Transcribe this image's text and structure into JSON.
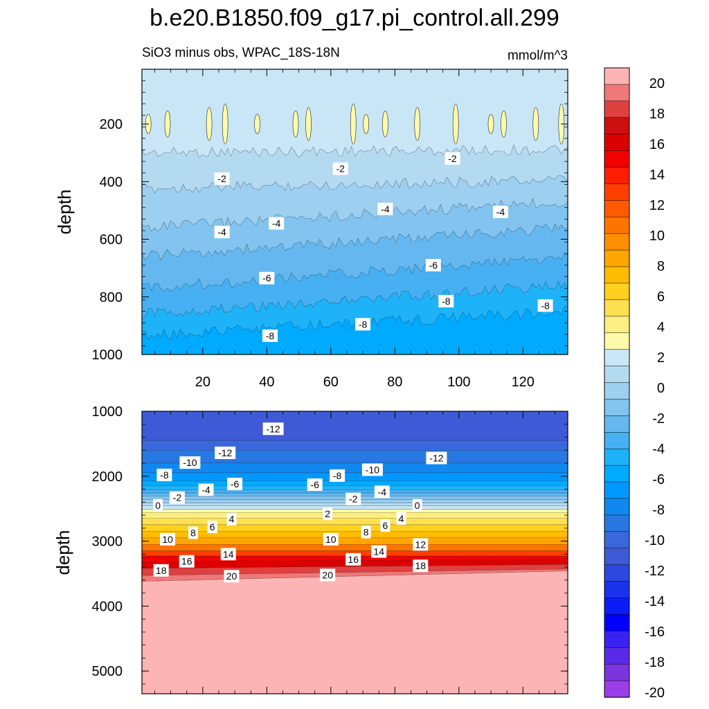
{
  "chart_data": [
    {
      "type": "heatmap",
      "panel": "upper",
      "title": "b.e20.B1850.f09_g17.pi_control.all.299",
      "subtitle_left": "SiO3 minus obs, WPAC_18S-18N",
      "subtitle_right": "mmol/m^3",
      "ylabel": "depth",
      "xlim": [
        1,
        134
      ],
      "ylim": [
        1000,
        10
      ],
      "x_ticks": [
        20,
        40,
        60,
        80,
        100,
        120
      ],
      "y_ticks": [
        200,
        400,
        600,
        800,
        1000
      ],
      "y_tick_labels": [
        "200",
        "400",
        "600",
        "800",
        "1000"
      ],
      "bands": [
        {
          "top": [
            10,
            10
          ],
          "bottom": [
            300,
            290
          ],
          "value": -1
        },
        {
          "top": [
            300,
            290
          ],
          "bottom": [
            425,
            395
          ],
          "value": -2
        },
        {
          "top": [
            425,
            395
          ],
          "bottom": [
            560,
            470
          ],
          "value": -3
        },
        {
          "top": [
            560,
            470
          ],
          "bottom": [
            660,
            560
          ],
          "value": -4
        },
        {
          "top": [
            660,
            560
          ],
          "bottom": [
            770,
            665
          ],
          "value": -5
        },
        {
          "top": [
            770,
            665
          ],
          "bottom": [
            860,
            760
          ],
          "value": -6
        },
        {
          "top": [
            860,
            760
          ],
          "bottom": [
            935,
            850
          ],
          "value": -7
        },
        {
          "top": [
            935,
            850
          ],
          "bottom": [
            1000,
            1000
          ],
          "value": -8
        }
      ],
      "positive_patches_x": [
        3,
        9,
        22,
        27,
        37,
        49,
        53,
        67,
        71,
        77,
        87,
        99,
        110,
        114,
        124,
        132
      ],
      "positive_patches_depth": 200,
      "contour_labels": [
        {
          "x": 26,
          "y": 390,
          "text": "-2"
        },
        {
          "x": 63,
          "y": 355,
          "text": "-2"
        },
        {
          "x": 98,
          "y": 320,
          "text": "-2"
        },
        {
          "x": 26,
          "y": 575,
          "text": "-4"
        },
        {
          "x": 43,
          "y": 545,
          "text": "-4"
        },
        {
          "x": 77,
          "y": 495,
          "text": "-4"
        },
        {
          "x": 113,
          "y": 505,
          "text": "-4"
        },
        {
          "x": 40,
          "y": 735,
          "text": "-6"
        },
        {
          "x": 92,
          "y": 690,
          "text": "-6"
        },
        {
          "x": 41,
          "y": 935,
          "text": "-8"
        },
        {
          "x": 70,
          "y": 895,
          "text": "-8"
        },
        {
          "x": 96,
          "y": 815,
          "text": "-8"
        },
        {
          "x": 127,
          "y": 830,
          "text": "-8"
        }
      ]
    },
    {
      "type": "heatmap",
      "panel": "lower",
      "ylabel": "depth",
      "xlim": [
        1,
        134
      ],
      "ylim": [
        5350,
        1000
      ],
      "y_ticks": [
        1000,
        2000,
        3000,
        4000,
        5000
      ],
      "y_tick_labels": [
        "1000",
        "2000",
        "3000",
        "4000",
        "5000"
      ],
      "bands": [
        {
          "top": [
            1000,
            1000
          ],
          "bottom": [
            1450,
            1450
          ],
          "value": -13
        },
        {
          "top": [
            1450,
            1450
          ],
          "bottom": [
            1600,
            1600
          ],
          "value": -12
        },
        {
          "top": [
            1600,
            1600
          ],
          "bottom": [
            1800,
            1800
          ],
          "value": -11
        },
        {
          "top": [
            1800,
            1800
          ],
          "bottom": [
            1950,
            1950
          ],
          "value": -10
        },
        {
          "top": [
            1950,
            1950
          ],
          "bottom": [
            2070,
            2070
          ],
          "value": -9
        },
        {
          "top": [
            2070,
            2070
          ],
          "bottom": [
            2150,
            2150
          ],
          "value": -8
        },
        {
          "top": [
            2150,
            2150
          ],
          "bottom": [
            2210,
            2210
          ],
          "value": -7
        },
        {
          "top": [
            2210,
            2210
          ],
          "bottom": [
            2260,
            2260
          ],
          "value": -6
        },
        {
          "top": [
            2260,
            2260
          ],
          "bottom": [
            2310,
            2310
          ],
          "value": -5
        },
        {
          "top": [
            2310,
            2310
          ],
          "bottom": [
            2360,
            2360
          ],
          "value": -4
        },
        {
          "top": [
            2360,
            2360
          ],
          "bottom": [
            2410,
            2410
          ],
          "value": -3
        },
        {
          "top": [
            2410,
            2410
          ],
          "bottom": [
            2460,
            2460
          ],
          "value": -2
        },
        {
          "top": [
            2460,
            2460
          ],
          "bottom": [
            2510,
            2510
          ],
          "value": -1
        },
        {
          "top": [
            2510,
            2510
          ],
          "bottom": [
            2560,
            2560
          ],
          "value": 0
        },
        {
          "top": [
            2560,
            2560
          ],
          "bottom": [
            2650,
            2650
          ],
          "value": 1
        },
        {
          "top": [
            2650,
            2650
          ],
          "bottom": [
            2750,
            2750
          ],
          "value": 3
        },
        {
          "top": [
            2750,
            2750
          ],
          "bottom": [
            2850,
            2850
          ],
          "value": 5
        },
        {
          "top": [
            2850,
            2850
          ],
          "bottom": [
            2950,
            2950
          ],
          "value": 7
        },
        {
          "top": [
            2950,
            2950
          ],
          "bottom": [
            3050,
            3050
          ],
          "value": 9
        },
        {
          "top": [
            3050,
            3050
          ],
          "bottom": [
            3150,
            3150
          ],
          "value": 11
        },
        {
          "top": [
            3150,
            3150
          ],
          "bottom": [
            3230,
            3230
          ],
          "value": 13
        },
        {
          "top": [
            3230,
            3230
          ],
          "bottom": [
            3320,
            3280
          ],
          "value": 15
        },
        {
          "top": [
            3320,
            3280
          ],
          "bottom": [
            3420,
            3360
          ],
          "value": 17
        },
        {
          "top": [
            3420,
            3360
          ],
          "bottom": [
            3530,
            3430
          ],
          "value": 19
        },
        {
          "top": [
            3530,
            3430
          ],
          "bottom": [
            3620,
            3460
          ],
          "value": 20.5
        },
        {
          "top": [
            3620,
            3460
          ],
          "bottom": [
            5350,
            5350
          ],
          "value": 21
        }
      ],
      "contour_labels": [
        {
          "x": 42,
          "y": 1270,
          "text": "-12"
        },
        {
          "x": 27,
          "y": 1640,
          "text": "-12"
        },
        {
          "x": 93,
          "y": 1720,
          "text": "-12"
        },
        {
          "x": 16,
          "y": 1790,
          "text": "-10"
        },
        {
          "x": 73,
          "y": 1900,
          "text": "-10"
        },
        {
          "x": 8,
          "y": 1980,
          "text": "-8"
        },
        {
          "x": 62,
          "y": 1990,
          "text": "-8"
        },
        {
          "x": 30,
          "y": 2120,
          "text": "-6"
        },
        {
          "x": 55,
          "y": 2130,
          "text": "-6"
        },
        {
          "x": 21,
          "y": 2210,
          "text": "-4"
        },
        {
          "x": 76,
          "y": 2240,
          "text": "-4"
        },
        {
          "x": 12,
          "y": 2330,
          "text": "-2"
        },
        {
          "x": 67,
          "y": 2350,
          "text": "-2"
        },
        {
          "x": 6,
          "y": 2450,
          "text": "0"
        },
        {
          "x": 87,
          "y": 2450,
          "text": "0"
        },
        {
          "x": 29,
          "y": 2660,
          "text": "4"
        },
        {
          "x": 82,
          "y": 2650,
          "text": "4"
        },
        {
          "x": 59,
          "y": 2580,
          "text": "2"
        },
        {
          "x": 23,
          "y": 2780,
          "text": "6"
        },
        {
          "x": 77,
          "y": 2760,
          "text": "6"
        },
        {
          "x": 17,
          "y": 2870,
          "text": "8"
        },
        {
          "x": 71,
          "y": 2860,
          "text": "8"
        },
        {
          "x": 9,
          "y": 2970,
          "text": "10"
        },
        {
          "x": 60,
          "y": 2970,
          "text": "10"
        },
        {
          "x": 88,
          "y": 3050,
          "text": "12"
        },
        {
          "x": 28,
          "y": 3200,
          "text": "14"
        },
        {
          "x": 75,
          "y": 3160,
          "text": "14"
        },
        {
          "x": 15,
          "y": 3310,
          "text": "16"
        },
        {
          "x": 67,
          "y": 3280,
          "text": "16"
        },
        {
          "x": 7,
          "y": 3450,
          "text": "18"
        },
        {
          "x": 88,
          "y": 3380,
          "text": "18"
        },
        {
          "x": 29,
          "y": 3540,
          "text": "20"
        },
        {
          "x": 59,
          "y": 3520,
          "text": "20"
        }
      ]
    }
  ],
  "colorbar": {
    "labels": [
      "20",
      "18",
      "16",
      "14",
      "12",
      "10",
      "8",
      "6",
      "4",
      "2",
      "0",
      "-2",
      "-4",
      "-6",
      "-8",
      "-10",
      "-12",
      "-14",
      "-16",
      "-18",
      "-20"
    ],
    "colors": [
      "#fdb4b4",
      "#f07878",
      "#e04040",
      "#cc1010",
      "#dd0000",
      "#f20000",
      "#ff1e00",
      "#ff3e00",
      "#ff5a00",
      "#ff7400",
      "#ff8e00",
      "#ffa600",
      "#ffbc00",
      "#ffd01e",
      "#ffe050",
      "#ffee82",
      "#fffaaa",
      "#c8e6f6",
      "#b4daf2",
      "#9ccff0",
      "#82c4ef",
      "#64b8ef",
      "#46b0f2",
      "#1eb2f8",
      "#00aaff",
      "#0098ff",
      "#1088f0",
      "#2878e4",
      "#3a68dc",
      "#3e5ad6",
      "#2c48e0",
      "#1a32ec",
      "#0c1cf8",
      "#0000ff",
      "#3a22f2",
      "#5a2ae8",
      "#7c34e0",
      "#9a3ee8"
    ]
  }
}
